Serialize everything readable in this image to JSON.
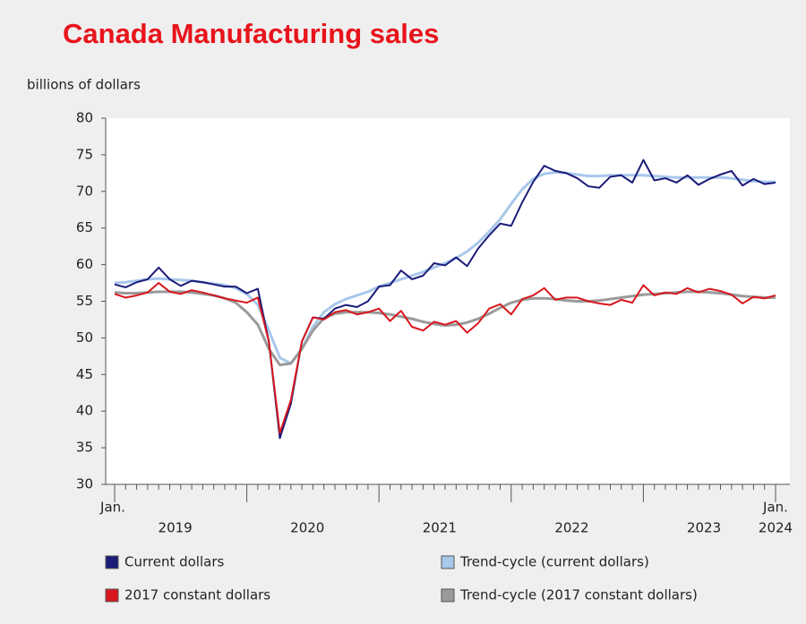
{
  "chart_data": {
    "type": "line",
    "title": "Canada Manufacturing sales",
    "y_label": "billions of dollars",
    "categories": [
      "Jan.",
      null,
      null,
      null,
      null,
      null,
      null,
      null,
      null,
      null,
      null,
      null,
      null,
      null,
      null,
      null,
      null,
      null,
      null,
      null,
      null,
      null,
      null,
      null,
      null,
      null,
      null,
      null,
      null,
      null,
      null,
      null,
      null,
      null,
      null,
      null,
      null,
      null,
      null,
      null,
      null,
      null,
      null,
      null,
      null,
      null,
      null,
      null,
      null,
      null,
      null,
      null,
      null,
      null,
      null,
      null,
      null,
      null,
      null,
      null,
      "Jan."
    ],
    "year_labels": [
      "2019",
      "2020",
      "2021",
      "2022",
      "2023",
      "2024"
    ],
    "ylim": [
      30,
      80
    ],
    "yticks": [
      30,
      35,
      40,
      45,
      50,
      55,
      60,
      65,
      70,
      75,
      80
    ],
    "series": [
      {
        "name": "Current dollars",
        "color": "#1b1b78",
        "values": [
          57.3,
          56.9,
          57.6,
          58.0,
          59.6,
          58.0,
          57.1,
          57.8,
          57.6,
          57.3,
          57.0,
          57.0,
          56.1,
          56.7,
          49.5,
          36.3,
          41.0,
          49.5,
          52.8,
          52.6,
          54.0,
          54.5,
          54.2,
          55.0,
          57.0,
          57.2,
          59.2,
          58.0,
          58.5,
          60.2,
          59.9,
          61.0,
          59.8,
          62.2,
          64.0,
          65.6,
          65.3,
          68.5,
          71.3,
          73.5,
          72.8,
          72.5,
          71.8,
          70.7,
          70.5,
          72.0,
          72.2,
          71.2,
          74.3,
          71.5,
          71.8,
          71.2,
          72.2,
          70.9,
          71.7,
          72.3,
          72.8,
          70.8,
          71.7,
          71.0,
          71.2
        ]
      },
      {
        "name": "Trend-cycle (current dollars)",
        "color": "#a8c8ec",
        "values": [
          57.5,
          57.6,
          57.8,
          58.0,
          58.1,
          58.0,
          57.9,
          57.8,
          57.6,
          57.4,
          57.2,
          56.8,
          56.0,
          54.5,
          51.0,
          47.3,
          46.5,
          48.5,
          51.5,
          53.5,
          54.6,
          55.3,
          55.8,
          56.3,
          57.0,
          57.5,
          58.0,
          58.5,
          59.0,
          59.6,
          60.2,
          60.9,
          61.8,
          63.0,
          64.5,
          66.2,
          68.3,
          70.3,
          71.7,
          72.4,
          72.6,
          72.5,
          72.3,
          72.1,
          72.1,
          72.2,
          72.2,
          72.2,
          72.2,
          72.1,
          72.0,
          71.9,
          71.9,
          71.9,
          71.9,
          71.9,
          71.8,
          71.6,
          71.4,
          71.3,
          71.3
        ]
      },
      {
        "name": "2017 constant dollars",
        "color": "#d7171d",
        "values": [
          56.0,
          55.5,
          55.8,
          56.2,
          57.5,
          56.3,
          56.0,
          56.5,
          56.2,
          55.8,
          55.4,
          55.1,
          54.8,
          55.5,
          49.5,
          37.0,
          41.5,
          49.5,
          52.8,
          52.5,
          53.5,
          53.8,
          53.2,
          53.5,
          54.0,
          52.3,
          53.7,
          51.5,
          51.0,
          52.2,
          51.8,
          52.3,
          50.7,
          52.0,
          54.0,
          54.6,
          53.2,
          55.3,
          55.8,
          56.8,
          55.2,
          55.5,
          55.5,
          55.0,
          54.7,
          54.5,
          55.2,
          54.8,
          57.2,
          55.8,
          56.2,
          56.0,
          56.8,
          56.2,
          56.7,
          56.4,
          55.9,
          54.7,
          55.6,
          55.4,
          55.8
        ]
      },
      {
        "name": "Trend-cycle (2017 constant dollars)",
        "color": "#9a9a9a",
        "values": [
          56.2,
          56.1,
          56.1,
          56.2,
          56.3,
          56.3,
          56.3,
          56.2,
          56.0,
          55.8,
          55.4,
          54.8,
          53.5,
          51.8,
          48.5,
          46.3,
          46.5,
          48.5,
          51.0,
          52.7,
          53.3,
          53.5,
          53.5,
          53.5,
          53.4,
          53.2,
          52.9,
          52.6,
          52.2,
          51.9,
          51.7,
          51.8,
          52.1,
          52.6,
          53.3,
          54.1,
          54.8,
          55.2,
          55.4,
          55.4,
          55.3,
          55.1,
          55.0,
          55.0,
          55.1,
          55.3,
          55.5,
          55.7,
          55.9,
          56.0,
          56.1,
          56.2,
          56.3,
          56.3,
          56.2,
          56.1,
          55.9,
          55.7,
          55.6,
          55.5,
          55.5
        ]
      }
    ]
  }
}
